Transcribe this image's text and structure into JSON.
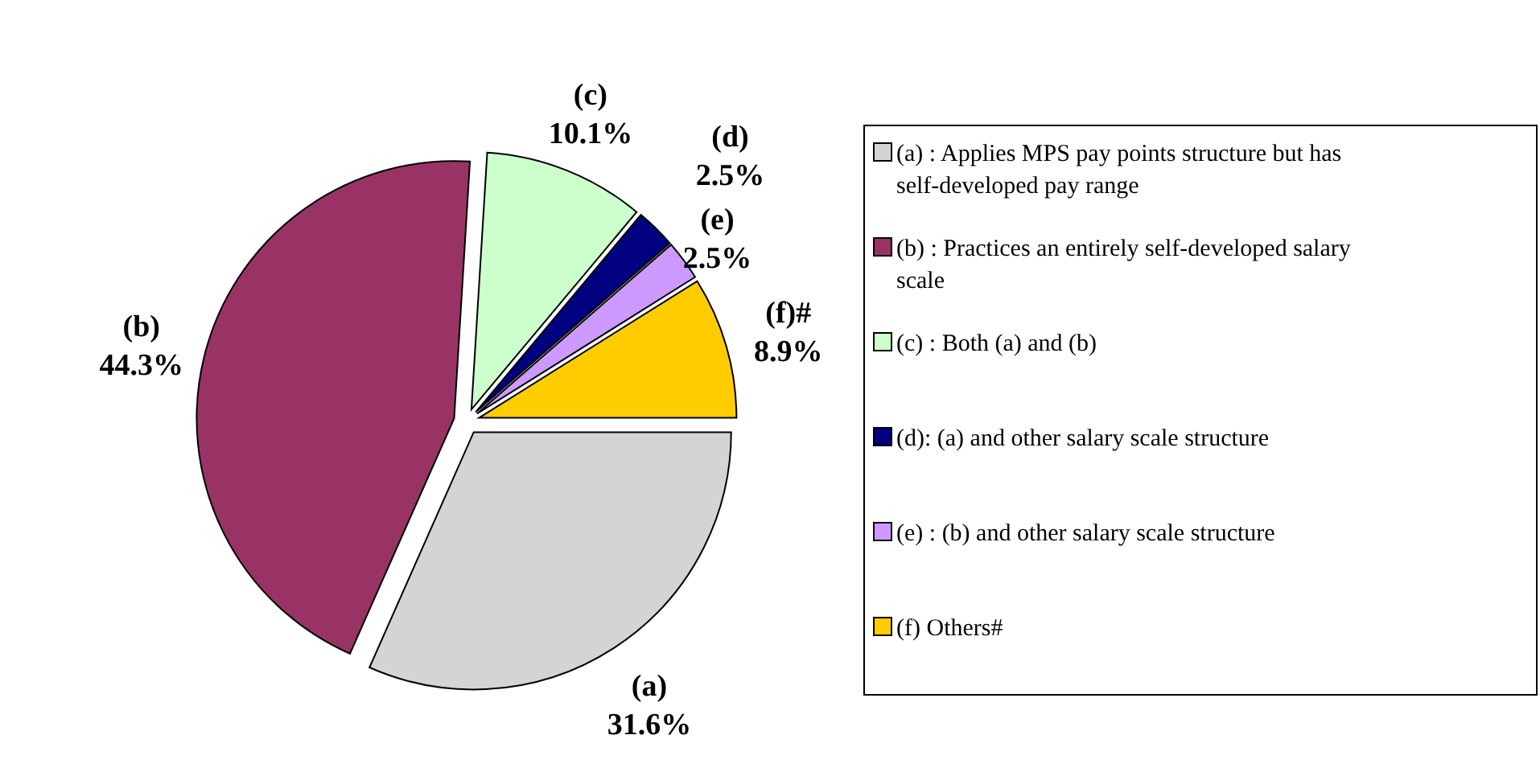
{
  "chart_data": {
    "type": "pie",
    "categories": [
      "(a) : Applies MPS pay points structure but has self-developed pay range",
      "(b) : Practices an entirely self-developed salary scale",
      "(c) : Both (a) and (b)",
      "(d):  (a) and other salary scale structure",
      "(e) : (b) and other salary scale structure",
      "(f) Others#"
    ],
    "values": [
      31.6,
      44.3,
      10.1,
      2.5,
      2.5,
      8.9
    ],
    "colors": [
      "#d4d4d4",
      "#993366",
      "#ccffcc",
      "#000080",
      "#cc99ff",
      "#ffcc00"
    ],
    "value_labels": [
      "31.6%",
      "44.3%",
      "10.1%",
      "2.5%",
      "2.5%",
      "8.9%"
    ],
    "annotations": [
      {
        "text": "(a)",
        "x": "(a) : Applies MPS pay points structure but has self-developed pay range"
      },
      {
        "text": "(b)",
        "x": "(b) : Practices an entirely self-developed salary scale"
      },
      {
        "text": "(c)",
        "x": "(c) : Both (a) and (b)"
      },
      {
        "text": "(d)",
        "x": "(d):  (a) and other salary scale structure"
      },
      {
        "text": "(e)",
        "x": "(e) : (b) and other salary scale structure"
      },
      {
        "text": "(f)#",
        "x": "(f) Others#"
      }
    ],
    "legend": "right"
  }
}
